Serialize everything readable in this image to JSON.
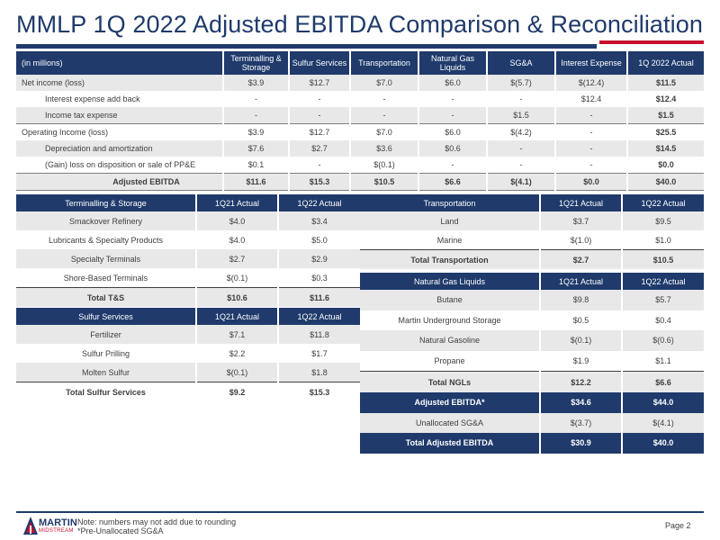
{
  "title": "MMLP 1Q 2022 Adjusted EBITDA Comparison & Reconciliation",
  "main": {
    "headers": [
      "(in millions)",
      "Terminalling & Storage",
      "Sulfur Services",
      "Transportation",
      "Natural Gas Liquids",
      "SG&A",
      "Interest Expense",
      "1Q 2022 Actual"
    ],
    "rows": [
      [
        "Net income (loss)",
        "$3.9",
        "$12.7",
        "$7.0",
        "$6.0",
        "$(5.7)",
        "$(12.4)",
        "$11.5"
      ],
      [
        "Interest expense add back",
        "-",
        "-",
        "-",
        "-",
        "-",
        "$12.4",
        "$12.4"
      ],
      [
        "Income tax expense",
        "-",
        "-",
        "-",
        "-",
        "$1.5",
        "-",
        "$1.5"
      ],
      [
        "Operating Income (loss)",
        "$3.9",
        "$12.7",
        "$7.0",
        "$6.0",
        "$(4.2)",
        "-",
        "$25.5"
      ],
      [
        "Depreciation and amortization",
        "$7.6",
        "$2.7",
        "$3.6",
        "$0.6",
        "-",
        "-",
        "$14.5"
      ],
      [
        "(Gain) loss on disposition or sale of PP&E",
        "$0.1",
        "-",
        "$(0.1)",
        "-",
        "-",
        "-",
        "$0.0"
      ],
      [
        "Adjusted EBITDA",
        "$11.6",
        "$15.3",
        "$10.5",
        "$6.6",
        "$(4.1)",
        "$0.0",
        "$40.0"
      ]
    ]
  },
  "ts": {
    "headers": [
      "Terminalling & Storage",
      "1Q21 Actual",
      "1Q22 Actual"
    ],
    "rows": [
      [
        "Smackover Refinery",
        "$4.0",
        "$3.4"
      ],
      [
        "Lubricants & Specialty Products",
        "$4.0",
        "$5.0"
      ],
      [
        "Specialty Terminals",
        "$2.7",
        "$2.9"
      ],
      [
        "Shore-Based Terminals",
        "$(0.1)",
        "$0.3"
      ],
      [
        "Total T&S",
        "$10.6",
        "$11.6"
      ]
    ]
  },
  "ss": {
    "headers": [
      "Sulfur Services",
      "1Q21 Actual",
      "1Q22 Actual"
    ],
    "rows": [
      [
        "Fertilizer",
        "$7.1",
        "$11.8"
      ],
      [
        "Sulfur Prilling",
        "$2.2",
        "$1.7"
      ],
      [
        "Molten Sulfur",
        "$(0.1)",
        "$1.8"
      ],
      [
        "Total Sulfur Services",
        "$9.2",
        "$15.3"
      ]
    ]
  },
  "tr": {
    "headers": [
      "Transportation",
      "1Q21 Actual",
      "1Q22 Actual"
    ],
    "rows": [
      [
        "Land",
        "$3.7",
        "$9.5"
      ],
      [
        "Marine",
        "$(1.0)",
        "$1.0"
      ],
      [
        "Total Transportation",
        "$2.7",
        "$10.5"
      ]
    ]
  },
  "ngl": {
    "headers": [
      "Natural Gas Liquids",
      "1Q21 Actual",
      "1Q22 Actual"
    ],
    "rows": [
      [
        "Butane",
        "$9.8",
        "$5.7"
      ],
      [
        "Martin Underground Storage",
        "$0.5",
        "$0.4"
      ],
      [
        "Natural Gasoline",
        "$(0.1)",
        "$(0.6)"
      ],
      [
        "Propane",
        "$1.9",
        "$1.1"
      ],
      [
        "Total NGLs",
        "$12.2",
        "$6.6"
      ],
      [
        "Adjusted EBITDA*",
        "$34.6",
        "$44.0"
      ],
      [
        "Unallocated SG&A",
        "$(3.7)",
        "$(4.1)"
      ],
      [
        "Total Adjusted EBITDA",
        "$30.9",
        "$40.0"
      ]
    ]
  },
  "footer": {
    "logo_text": "MARTIN",
    "logo_sub": "MIDSTREAM",
    "note1": "Note: numbers may not add due to rounding",
    "note2": "*Pre-Unallocated SG&A",
    "page": "Page 2"
  },
  "colors": {
    "navy": "#1f3a6b",
    "red": "#c8102e",
    "shade": "#e8e8e8"
  }
}
